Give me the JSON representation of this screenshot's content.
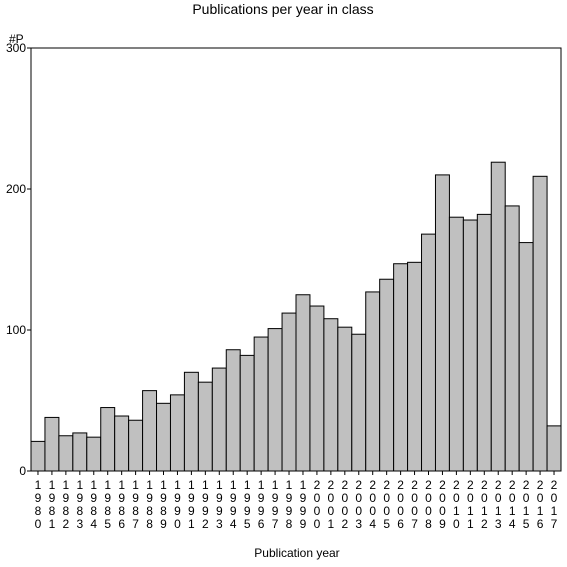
{
  "chart_data": {
    "type": "bar",
    "title": "Publications per year in class",
    "xlabel": "Publication year",
    "ylabel": "#P",
    "ylim": [
      0,
      300
    ],
    "yticks": [
      0,
      100,
      200,
      300
    ],
    "grid": false,
    "legend": "none",
    "bar_color": "#c0c0c0",
    "categories": [
      "1980",
      "1981",
      "1982",
      "1983",
      "1984",
      "1985",
      "1986",
      "1987",
      "1988",
      "1989",
      "1990",
      "1991",
      "1992",
      "1993",
      "1994",
      "1995",
      "1996",
      "1997",
      "1998",
      "1999",
      "2000",
      "2001",
      "2002",
      "2003",
      "2004",
      "2005",
      "2006",
      "2007",
      "2008",
      "2009",
      "2010",
      "2011",
      "2012",
      "2013",
      "2014",
      "2015",
      "2016",
      "2017"
    ],
    "values": [
      21,
      38,
      25,
      27,
      24,
      45,
      39,
      36,
      57,
      48,
      54,
      70,
      63,
      73,
      86,
      82,
      95,
      101,
      112,
      125,
      117,
      108,
      102,
      97,
      127,
      136,
      147,
      148,
      168,
      210,
      180,
      178,
      182,
      219,
      188,
      162,
      209,
      32
    ]
  }
}
